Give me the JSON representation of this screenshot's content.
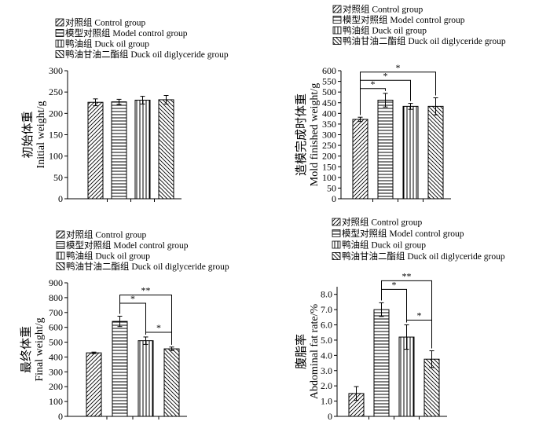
{
  "legend_items": [
    {
      "label": "对照组 Control group",
      "pattern": "diag-up"
    },
    {
      "label": "模型对照组 Model control group",
      "pattern": "hlines"
    },
    {
      "label": "鸭油组 Duck oil group",
      "pattern": "vlines"
    },
    {
      "label": "鸭油甘油二酯组  Duck oil diglyceride group",
      "pattern": "diag-down"
    }
  ],
  "chart_data": [
    {
      "type": "bar",
      "ylabel_cn": "初始体重",
      "ylabel_en": "Initial weight/g",
      "ylim": [
        0,
        300
      ],
      "yticks": [
        "0",
        "50",
        "100",
        "150",
        "200",
        "250",
        "300"
      ],
      "series": [
        {
          "name": "对照组 Control group",
          "value": 226,
          "error": 8
        },
        {
          "name": "模型对照组 Model control group",
          "value": 227,
          "error": 6
        },
        {
          "name": "鸭油组 Duck oil group",
          "value": 231,
          "error": 9
        },
        {
          "name": "鸭油甘油二酯组  Duck oil diglyceride group",
          "value": 232,
          "error": 10
        }
      ],
      "significance": []
    },
    {
      "type": "bar",
      "ylabel_cn": "造模完成时体重",
      "ylabel_en": "Mold finished weight/g",
      "ylim": [
        0,
        600
      ],
      "yticks": [
        "0",
        "50",
        "100",
        "150",
        "200",
        "250",
        "300",
        "350",
        "400",
        "450",
        "500",
        "550",
        "600"
      ],
      "series": [
        {
          "name": "对照组 Control group",
          "value": 372,
          "error": 10
        },
        {
          "name": "模型对照组 Model control group",
          "value": 462,
          "error": 32
        },
        {
          "name": "鸭油组 Duck oil group",
          "value": 433,
          "error": 14
        },
        {
          "name": "鸭油甘油二酯组  Duck oil diglyceride group",
          "value": 433,
          "error": 40
        }
      ],
      "significance": [
        {
          "from": 0,
          "to": 1,
          "label": "*",
          "level": 1
        },
        {
          "from": 0,
          "to": 2,
          "label": "*",
          "level": 2
        },
        {
          "from": 0,
          "to": 3,
          "label": "*",
          "level": 3
        }
      ]
    },
    {
      "type": "bar",
      "ylabel_cn": "最终体重",
      "ylabel_en": "Final weight/g",
      "ylim": [
        0,
        900
      ],
      "yticks": [
        "0",
        "100",
        "200",
        "300",
        "400",
        "500",
        "600",
        "700",
        "800",
        "900"
      ],
      "series": [
        {
          "name": "对照组 Control group",
          "value": 428,
          "error": 5
        },
        {
          "name": "模型对照组 Model control group",
          "value": 640,
          "error": 35
        },
        {
          "name": "鸭油组 Duck oil group",
          "value": 510,
          "error": 25
        },
        {
          "name": "鸭油甘油二酯组  Duck oil diglyceride group",
          "value": 455,
          "error": 12
        }
      ],
      "significance": [
        {
          "from": 1,
          "to": 2,
          "label": "*",
          "level": 2
        },
        {
          "from": 1,
          "to": 3,
          "label": "**",
          "level": 3
        },
        {
          "from": 2,
          "to": 3,
          "label": "*",
          "level": 1
        }
      ]
    },
    {
      "type": "bar",
      "ylabel_cn": "腹脂率",
      "ylabel_en": "Abdominal fat rate/%",
      "ylim": [
        0,
        8.5
      ],
      "yticks": [
        "0",
        "1.0",
        "2.0",
        "3.0",
        "4.0",
        "5.0",
        "6.0",
        "7.0",
        "8.0"
      ],
      "series": [
        {
          "name": "对照组 Control group",
          "value": 1.5,
          "error": 0.45
        },
        {
          "name": "模型对照组 Model control group",
          "value": 7.0,
          "error": 0.45
        },
        {
          "name": "鸭油组 Duck oil group",
          "value": 5.2,
          "error": 0.8
        },
        {
          "name": "鸭油甘油二酯组  Duck oil diglyceride group",
          "value": 3.75,
          "error": 0.55
        }
      ],
      "significance": [
        {
          "from": 1,
          "to": 2,
          "label": "*",
          "level": 2
        },
        {
          "from": 1,
          "to": 3,
          "label": "**",
          "level": 3
        },
        {
          "from": 2,
          "to": 3,
          "label": "*",
          "level": 1
        }
      ]
    }
  ]
}
